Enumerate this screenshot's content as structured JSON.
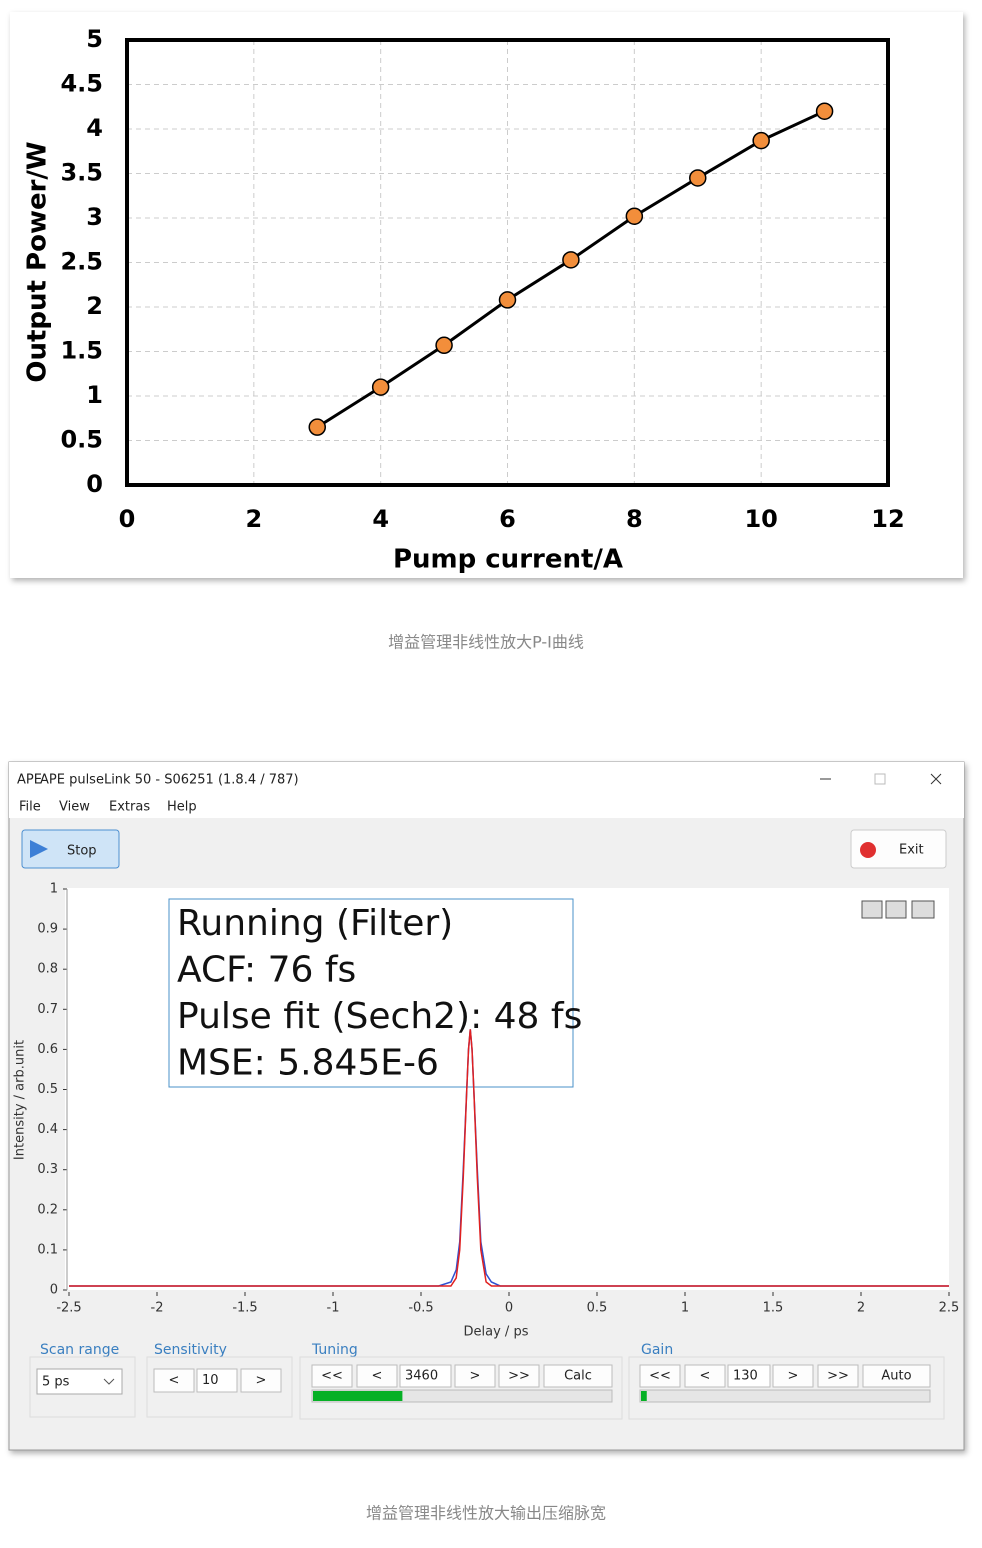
{
  "chart_data": [
    {
      "type": "line",
      "x_label": "Pump current/A",
      "y_label": "Output Power/W",
      "x": [
        3,
        4,
        5,
        6,
        7,
        8,
        9,
        10,
        11
      ],
      "series": [
        {
          "color": "#000000",
          "marker_color": "#f28e3b",
          "values": [
            0.65,
            1.1,
            1.57,
            2.08,
            2.53,
            3.02,
            3.45,
            3.87,
            4.2
          ]
        }
      ],
      "xlim": [
        0,
        12
      ],
      "xticks": [
        0,
        2,
        4,
        6,
        8,
        10,
        12
      ],
      "ylim": [
        0,
        5
      ],
      "yticks": [
        0,
        0.5,
        1,
        1.5,
        2,
        2.5,
        3,
        3.5,
        4,
        4.5,
        5
      ],
      "grid": true
    },
    {
      "type": "line",
      "x_label": "Delay / ps",
      "y_label": "Intensity / arb.unit",
      "annotation": [
        "Running (Filter)",
        "ACF: 76 fs",
        "Pulse fit (Sech2): 48 fs",
        "MSE: 5.845E-6"
      ],
      "x": [
        -2.5,
        -0.6,
        -0.4,
        -0.33,
        -0.3,
        -0.28,
        -0.26,
        -0.24,
        -0.23,
        -0.22,
        -0.21,
        -0.2,
        -0.18,
        -0.16,
        -0.13,
        -0.1,
        -0.05,
        0,
        2.5
      ],
      "series": [
        {
          "color": "#3050d0",
          "values": [
            0.01,
            0.01,
            0.01,
            0.02,
            0.05,
            0.12,
            0.3,
            0.5,
            0.6,
            0.65,
            0.6,
            0.5,
            0.3,
            0.12,
            0.04,
            0.02,
            0.01,
            0.01,
            0.01
          ]
        },
        {
          "color": "#e02020",
          "values": [
            0.01,
            0.01,
            0.01,
            0.01,
            0.03,
            0.1,
            0.28,
            0.5,
            0.6,
            0.65,
            0.6,
            0.5,
            0.28,
            0.1,
            0.02,
            0.01,
            0.01,
            0.01,
            0.01
          ]
        }
      ],
      "xlim": [
        -2.5,
        2.5
      ],
      "xticks": [
        -2.5,
        -2,
        -1.5,
        -1,
        -0.5,
        0,
        0.5,
        1,
        1.5,
        2,
        2.5
      ],
      "ylim": [
        0,
        1
      ],
      "yticks": [
        0,
        0.1,
        0.2,
        0.3,
        0.4,
        0.5,
        0.6,
        0.7,
        0.8,
        0.9,
        1
      ],
      "grid": false
    }
  ],
  "captions": [
    "增益管理非线性放大P-I曲线",
    "增益管理非线性放大输出压缩脉宽"
  ],
  "window": {
    "title": "APE pulseLink 50 - S06251 (1.8.4 / 787)",
    "logo": "APE",
    "menu": [
      "File",
      "View",
      "Extras",
      "Help"
    ],
    "stop": "Stop",
    "exit": "Exit",
    "scan_range": {
      "label": "Scan range",
      "value": "5 ps"
    },
    "sensitivity": {
      "label": "Sensitivity",
      "buttons": [
        "<",
        "10",
        ">"
      ]
    },
    "tuning": {
      "label": "Tuning",
      "buttons": [
        "<<",
        "<",
        "3460",
        ">",
        ">>",
        "Calc"
      ],
      "progress": 30
    },
    "gain": {
      "label": "Gain",
      "buttons": [
        "<<",
        "<",
        "130",
        ">",
        ">>",
        "Auto"
      ],
      "progress": 2
    }
  }
}
